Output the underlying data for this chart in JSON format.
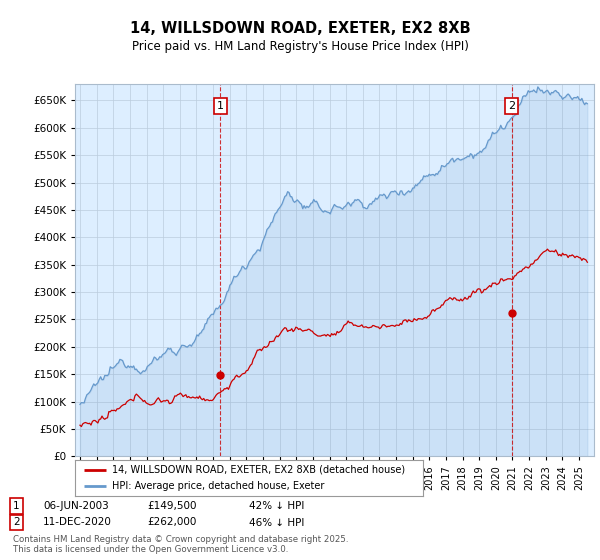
{
  "title": "14, WILLSDOWN ROAD, EXETER, EX2 8XB",
  "subtitle": "Price paid vs. HM Land Registry's House Price Index (HPI)",
  "ylim": [
    0,
    680000
  ],
  "yticks": [
    0,
    50000,
    100000,
    150000,
    200000,
    250000,
    300000,
    350000,
    400000,
    450000,
    500000,
    550000,
    600000,
    650000
  ],
  "xlim_left": 1994.7,
  "xlim_right": 2025.9,
  "background_color": "#ffffff",
  "plot_bg_color": "#ddeeff",
  "grid_color": "#bbccdd",
  "hpi_color": "#6699cc",
  "price_color": "#cc0000",
  "transaction1_x": 2003.44,
  "transaction1_y": 149500,
  "transaction2_x": 2020.95,
  "transaction2_y": 262000,
  "legend_label1": "14, WILLSDOWN ROAD, EXETER, EX2 8XB (detached house)",
  "legend_label2": "HPI: Average price, detached house, Exeter",
  "footnote3": "Contains HM Land Registry data © Crown copyright and database right 2025.",
  "footnote4": "This data is licensed under the Open Government Licence v3.0."
}
